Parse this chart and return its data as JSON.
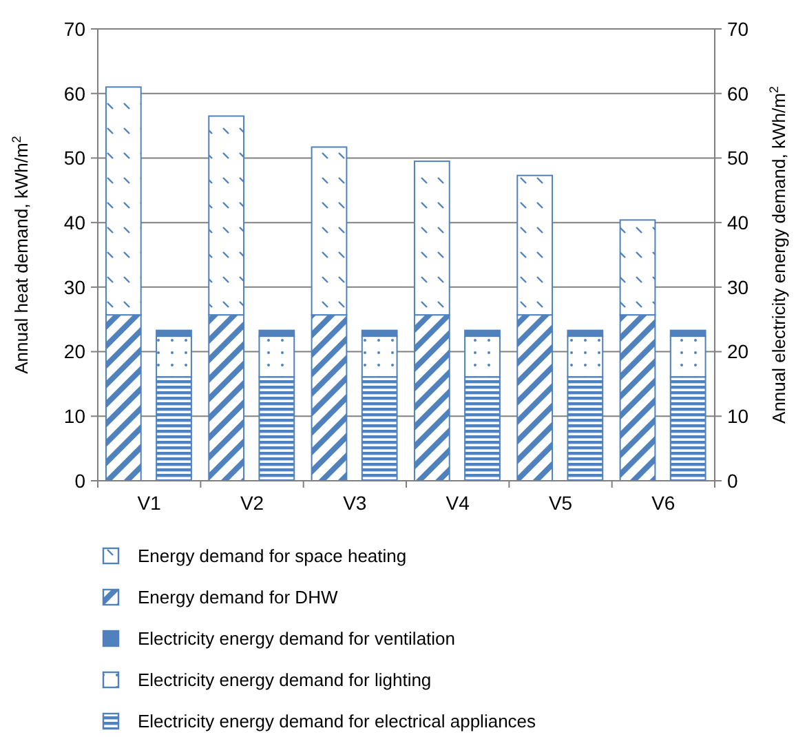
{
  "chart_data": {
    "type": "bar",
    "stacked": true,
    "categories": [
      "V1",
      "V2",
      "V3",
      "V4",
      "V5",
      "V6"
    ],
    "ylabel": "Annual heat demand, kWh/m$^{2}$",
    "y2label": "Annual electricity energy demand, kWh/m$^{2}$",
    "ylim": [
      0,
      70
    ],
    "yticks": [
      0,
      10,
      20,
      30,
      40,
      50,
      60,
      70
    ],
    "y2lim": [
      0,
      70
    ],
    "y2ticks": [
      0,
      10,
      20,
      30,
      40,
      50,
      60,
      70
    ],
    "grid": "y",
    "legend": "bottom",
    "series": [
      {
        "name": "Energy demand for DHW",
        "color": "#4f81bd",
        "values": [
          25.7,
          25.7,
          25.7,
          25.7,
          25.7,
          25.7
        ]
      },
      {
        "name": "Energy demand for space heating",
        "color": "#4f81bd",
        "values": [
          35.3,
          30.8,
          26.0,
          23.8,
          21.6,
          14.7
        ]
      },
      {
        "name": "Electricity energy demand for electrical appliances",
        "color": "#4f81bd",
        "axis": "y2",
        "values": [
          16.1,
          16.1,
          16.1,
          16.1,
          16.1,
          16.1
        ]
      },
      {
        "name": "Electricity energy demand for lighting",
        "color": "#4f81bd",
        "axis": "y2",
        "values": [
          6.3,
          6.3,
          6.3,
          6.3,
          6.3,
          6.3
        ]
      },
      {
        "name": "Electricity energy demand for ventilation",
        "color": "#4f81bd",
        "axis": "y2",
        "values": [
          0.9,
          0.9,
          0.9,
          0.9,
          0.9,
          0.9
        ]
      }
    ]
  }
}
